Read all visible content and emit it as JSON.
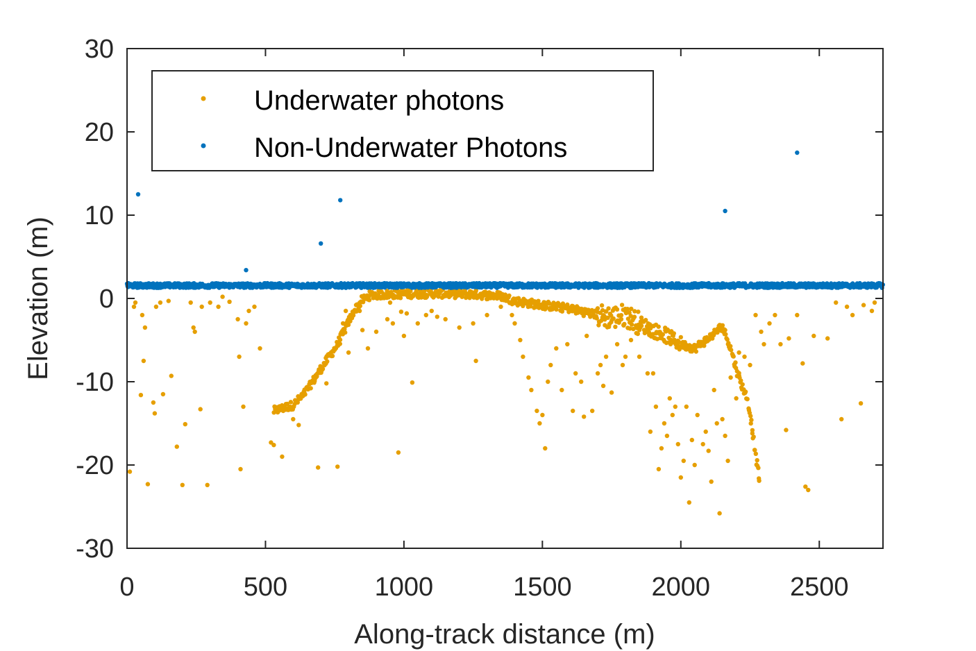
{
  "chart_data": {
    "type": "scatter",
    "title": "",
    "xlabel": "Along-track distance (m)",
    "ylabel": "Elevation (m)",
    "xlim": [
      0,
      2730
    ],
    "ylim": [
      -30,
      30
    ],
    "xticks": [
      0,
      500,
      1000,
      1500,
      2000,
      2500
    ],
    "yticks": [
      -30,
      -20,
      -10,
      0,
      10,
      20,
      30
    ],
    "grid": false,
    "legend_position": "top-left",
    "series": [
      {
        "name": "Underwater photons",
        "color": "#e69f00",
        "points": [
          [
            10,
            -20.8
          ],
          [
            25,
            -1
          ],
          [
            30,
            -0.5
          ],
          [
            50,
            -11.6
          ],
          [
            55,
            -2
          ],
          [
            60,
            -7.5
          ],
          [
            65,
            -3.5
          ],
          [
            75,
            -22.3
          ],
          [
            95,
            -12.5
          ],
          [
            100,
            -13.8
          ],
          [
            105,
            -1
          ],
          [
            120,
            -0.5
          ],
          [
            130,
            -11.5
          ],
          [
            150,
            -0.3
          ],
          [
            160,
            -9.3
          ],
          [
            180,
            -17.8
          ],
          [
            200,
            -22.4
          ],
          [
            210,
            -15.1
          ],
          [
            230,
            -0.5
          ],
          [
            240,
            -3.5
          ],
          [
            245,
            -4
          ],
          [
            265,
            -13.3
          ],
          [
            270,
            -1
          ],
          [
            290,
            -22.4
          ],
          [
            300,
            -0.5
          ],
          [
            330,
            -1
          ],
          [
            345,
            0.2
          ],
          [
            370,
            -0.4
          ],
          [
            400,
            -2.5
          ],
          [
            405,
            -7
          ],
          [
            410,
            -20.5
          ],
          [
            420,
            -13
          ],
          [
            430,
            -3
          ],
          [
            440,
            -1.5
          ],
          [
            460,
            -1
          ],
          [
            480,
            -6
          ],
          [
            520,
            -17.3
          ],
          [
            530,
            -17.6
          ],
          [
            560,
            -19
          ],
          [
            600,
            -14.5
          ],
          [
            620,
            -15.2
          ],
          [
            690,
            -20.3
          ],
          [
            720,
            -10.2
          ],
          [
            760,
            -20.2
          ],
          [
            780,
            -3
          ],
          [
            790,
            -1.5
          ],
          [
            800,
            -6.5
          ],
          [
            840,
            -1.5
          ],
          [
            850,
            -3.8
          ],
          [
            870,
            -6
          ],
          [
            900,
            -4
          ],
          [
            940,
            -2.5
          ],
          [
            950,
            -0.5
          ],
          [
            960,
            -3
          ],
          [
            980,
            -18.5
          ],
          [
            990,
            -1.6
          ],
          [
            1000,
            -4.5
          ],
          [
            1010,
            -1.8
          ],
          [
            1030,
            -10.1
          ],
          [
            1050,
            -3
          ],
          [
            1080,
            -2
          ],
          [
            1100,
            -1.5
          ],
          [
            1120,
            -2.2
          ],
          [
            1150,
            -2.5
          ],
          [
            1200,
            -3.5
          ],
          [
            1250,
            -3
          ],
          [
            1260,
            -7.5
          ],
          [
            1300,
            -2
          ],
          [
            1350,
            -1
          ],
          [
            1390,
            -2
          ],
          [
            1400,
            -3
          ],
          [
            1420,
            -5
          ],
          [
            1430,
            -7
          ],
          [
            1450,
            -9.5
          ],
          [
            1460,
            -11
          ],
          [
            1480,
            -13.5
          ],
          [
            1490,
            -15
          ],
          [
            1500,
            -14
          ],
          [
            1510,
            -18
          ],
          [
            1520,
            -10
          ],
          [
            1530,
            -8
          ],
          [
            1550,
            -6
          ],
          [
            1570,
            -11
          ],
          [
            1590,
            -5.5
          ],
          [
            1610,
            -13.5
          ],
          [
            1620,
            -9
          ],
          [
            1640,
            -10
          ],
          [
            1650,
            -14.2
          ],
          [
            1660,
            -4.5
          ],
          [
            1680,
            -13.5
          ],
          [
            1700,
            -9
          ],
          [
            1710,
            -8
          ],
          [
            1720,
            -10.5
          ],
          [
            1730,
            -7
          ],
          [
            1750,
            -11.3
          ],
          [
            1770,
            -5.5
          ],
          [
            1790,
            -8
          ],
          [
            1800,
            -7
          ],
          [
            1820,
            -5
          ],
          [
            1850,
            -7
          ],
          [
            1880,
            -9
          ],
          [
            1890,
            -16
          ],
          [
            1900,
            -9
          ],
          [
            1910,
            -13
          ],
          [
            1920,
            -20.5
          ],
          [
            1930,
            -18
          ],
          [
            1940,
            -15
          ],
          [
            1950,
            -16.5
          ],
          [
            1960,
            -12
          ],
          [
            1970,
            -14
          ],
          [
            1980,
            -13
          ],
          [
            1990,
            -17.5
          ],
          [
            2000,
            -21.5
          ],
          [
            2010,
            -19.5
          ],
          [
            2020,
            -13
          ],
          [
            2030,
            -24.5
          ],
          [
            2040,
            -17
          ],
          [
            2050,
            -20
          ],
          [
            2060,
            -14
          ],
          [
            2080,
            -17.5
          ],
          [
            2090,
            -16
          ],
          [
            2100,
            -18.3
          ],
          [
            2110,
            -22
          ],
          [
            2120,
            -11
          ],
          [
            2130,
            -15
          ],
          [
            2140,
            -25.8
          ],
          [
            2150,
            -14.5
          ],
          [
            2160,
            -16.5
          ],
          [
            2170,
            -19.5
          ],
          [
            2180,
            -9.5
          ],
          [
            2200,
            -12
          ],
          [
            2210,
            -6.5
          ],
          [
            2230,
            -7
          ],
          [
            2250,
            -8
          ],
          [
            2270,
            -2
          ],
          [
            2290,
            -4
          ],
          [
            2300,
            -5.5
          ],
          [
            2320,
            -3
          ],
          [
            2340,
            -2
          ],
          [
            2360,
            -5.5
          ],
          [
            2380,
            -15.8
          ],
          [
            2390,
            -4.8
          ],
          [
            2420,
            -2
          ],
          [
            2440,
            -7.8
          ],
          [
            2450,
            -22.6
          ],
          [
            2460,
            -23
          ],
          [
            2480,
            -4.5
          ],
          [
            2530,
            -4.8
          ],
          [
            2560,
            -0.5
          ],
          [
            2580,
            -14.5
          ],
          [
            2600,
            -1
          ],
          [
            2620,
            -2
          ],
          [
            2650,
            -12.6
          ],
          [
            2660,
            -0.8
          ],
          [
            2690,
            -1.5
          ],
          [
            2700,
            -0.5
          ]
        ]
      },
      {
        "name": "Non-Underwater Photons",
        "color": "#0072bd",
        "points": [
          [
            40,
            12.5
          ],
          [
            430,
            3.4
          ],
          [
            700,
            6.6
          ],
          [
            770,
            11.8
          ],
          [
            2160,
            10.5
          ],
          [
            2420,
            17.5
          ]
        ]
      }
    ]
  },
  "legend": {
    "items": [
      "Underwater photons",
      "Non-Underwater Photons"
    ]
  }
}
